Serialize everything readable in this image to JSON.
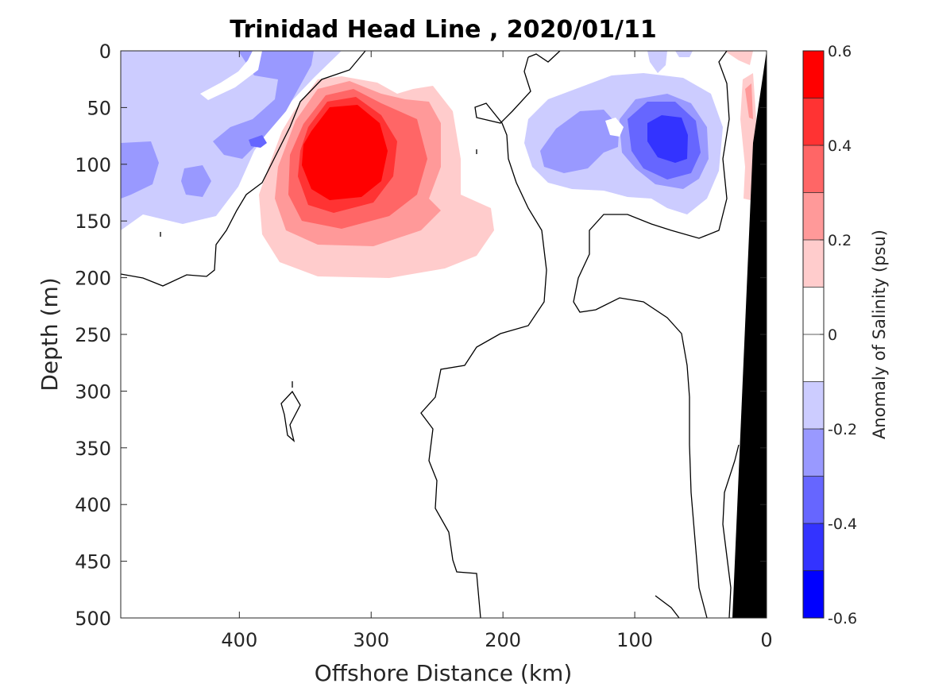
{
  "chart_data": {
    "type": "heatmap",
    "title": "Trinidad Head Line , 2020/01/11",
    "xlabel": "Offshore Distance (km)",
    "ylabel": "Depth (m)",
    "colorbar_label": "Anomaly of Salinity (psu)",
    "xlim": [
      490,
      0
    ],
    "ylim": [
      0,
      500
    ],
    "x_axis_reversed": true,
    "y_axis_reversed": true,
    "xticks": [
      400,
      300,
      200,
      100,
      0
    ],
    "yticks": [
      0,
      50,
      100,
      150,
      200,
      250,
      300,
      350,
      400,
      450,
      500
    ],
    "colorbar": {
      "range": [
        -0.6,
        0.6
      ],
      "levels": [
        -0.6,
        -0.5,
        -0.4,
        -0.3,
        -0.2,
        -0.1,
        0,
        0.1,
        0.2,
        0.3,
        0.4,
        0.5,
        0.6
      ],
      "tick_labels": [
        "0.6",
        "0.4",
        "0.2",
        "0",
        "-0.2",
        "-0.4",
        "-0.6"
      ],
      "colors": [
        "#0000ff",
        "#3333ff",
        "#6666ff",
        "#9999ff",
        "#ccccff",
        "#ffffff",
        "#ffffff",
        "#ffcccc",
        "#ff9999",
        "#ff6666",
        "#ff3333",
        "#ff0000"
      ]
    },
    "features": [
      {
        "name": "positive salinity anomaly core",
        "x_center_km": 318,
        "depth_center_m": 100,
        "peak_psu": 0.6
      },
      {
        "name": "negative salinity anomaly core",
        "x_center_km": 75,
        "depth_center_m": 80,
        "peak_psu": -0.5
      },
      {
        "name": "negative anomaly band near surface",
        "x_range_km": [
          490,
          330
        ],
        "depth_range_m": [
          0,
          160
        ],
        "peak_psu": -0.4
      },
      {
        "name": "bathymetry (seafloor)",
        "color": "#000000",
        "x_range_km": [
          28,
          0
        ]
      }
    ],
    "grid": false
  }
}
